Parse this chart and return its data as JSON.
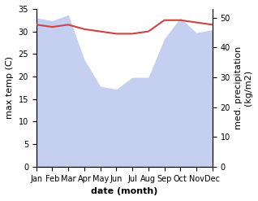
{
  "months": [
    "Jan",
    "Feb",
    "Mar",
    "Apr",
    "May",
    "Jun",
    "Jul",
    "Aug",
    "Sep",
    "Oct",
    "Nov",
    "Dec"
  ],
  "temp_max": [
    31.5,
    31.0,
    31.5,
    30.5,
    30.0,
    29.5,
    29.5,
    30.0,
    32.5,
    32.5,
    32.0,
    31.5
  ],
  "precipitation": [
    50,
    49,
    51,
    36,
    27,
    26,
    30,
    30,
    43,
    50,
    45,
    46
  ],
  "temp_color": "#cc4444",
  "precip_fill_color": "#c5cff0",
  "xlabel": "date (month)",
  "ylabel_left": "max temp (C)",
  "ylabel_right": "med. precipitation\n(kg/m2)",
  "ylim_left": [
    0,
    35
  ],
  "ylim_right": [
    0,
    53
  ],
  "yticks_left": [
    0,
    5,
    10,
    15,
    20,
    25,
    30,
    35
  ],
  "yticks_right": [
    0,
    10,
    20,
    30,
    40,
    50
  ],
  "label_fontsize": 8,
  "tick_fontsize": 7
}
